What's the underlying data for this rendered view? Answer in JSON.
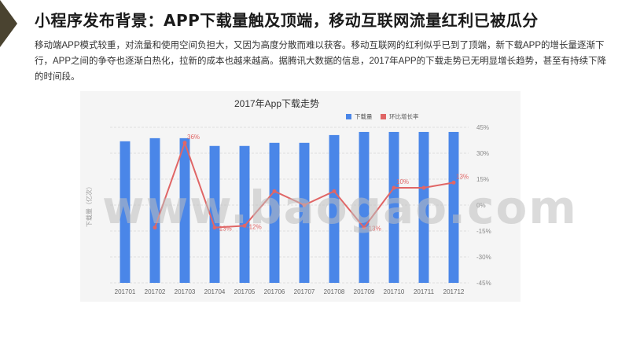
{
  "slide": {
    "title": "小程序发布背景：APP下载量触及顶端，移动互联网流量红利已被瓜分",
    "description": "移动端APP模式较重，对流量和使用空间负担大，又因为高度分散而难以获客。移动互联网的红利似乎已到了顶端，新下载APP的增长量逐渐下行，APP之间的争夺也逐渐白热化，拉新的成本也越来越高。据腾讯大数据的信息，2017年APP的下载走势已无明显增长趋势，甚至有持续下降的时间段。",
    "watermark": "www.baogao.com"
  },
  "colors": {
    "bar": "#4a86e8",
    "line": "#e06666",
    "background": "#f5f5f5",
    "corner": "#4a4330"
  },
  "chart_data": {
    "type": "bar",
    "title": "2017年App下载走势",
    "categories": [
      "201701",
      "201702",
      "201703",
      "201704",
      "201705",
      "201706",
      "201707",
      "201708",
      "201709",
      "201710",
      "201711",
      "201712"
    ],
    "ylabel": "下载量（亿次）",
    "ylim": [
      0,
      100
    ],
    "y2lim": [
      -45,
      45
    ],
    "y2ticks": [
      "45%",
      "30%",
      "15%",
      "0%",
      "-15%",
      "-30%",
      "-45%"
    ],
    "legend": [
      "下载量",
      "环比增长率"
    ],
    "legend_position": "top-right",
    "series": [
      {
        "name": "下载量",
        "type": "bar",
        "values": [
          91,
          93,
          93,
          88,
          88,
          90,
          90,
          95,
          97,
          97,
          97,
          97
        ]
      },
      {
        "name": "环比增长率",
        "type": "line",
        "values": [
          null,
          -13,
          36,
          -13,
          -12,
          8,
          0,
          8,
          -13,
          10,
          10,
          13
        ]
      }
    ],
    "data_labels": [
      {
        "index": 2,
        "text": "36%"
      },
      {
        "index": 3,
        "text": "-13%"
      },
      {
        "index": 4,
        "text": "-12%"
      },
      {
        "index": 8,
        "text": "-13%"
      },
      {
        "index": 9,
        "text": "10%"
      },
      {
        "index": 11,
        "text": "13%"
      }
    ]
  }
}
